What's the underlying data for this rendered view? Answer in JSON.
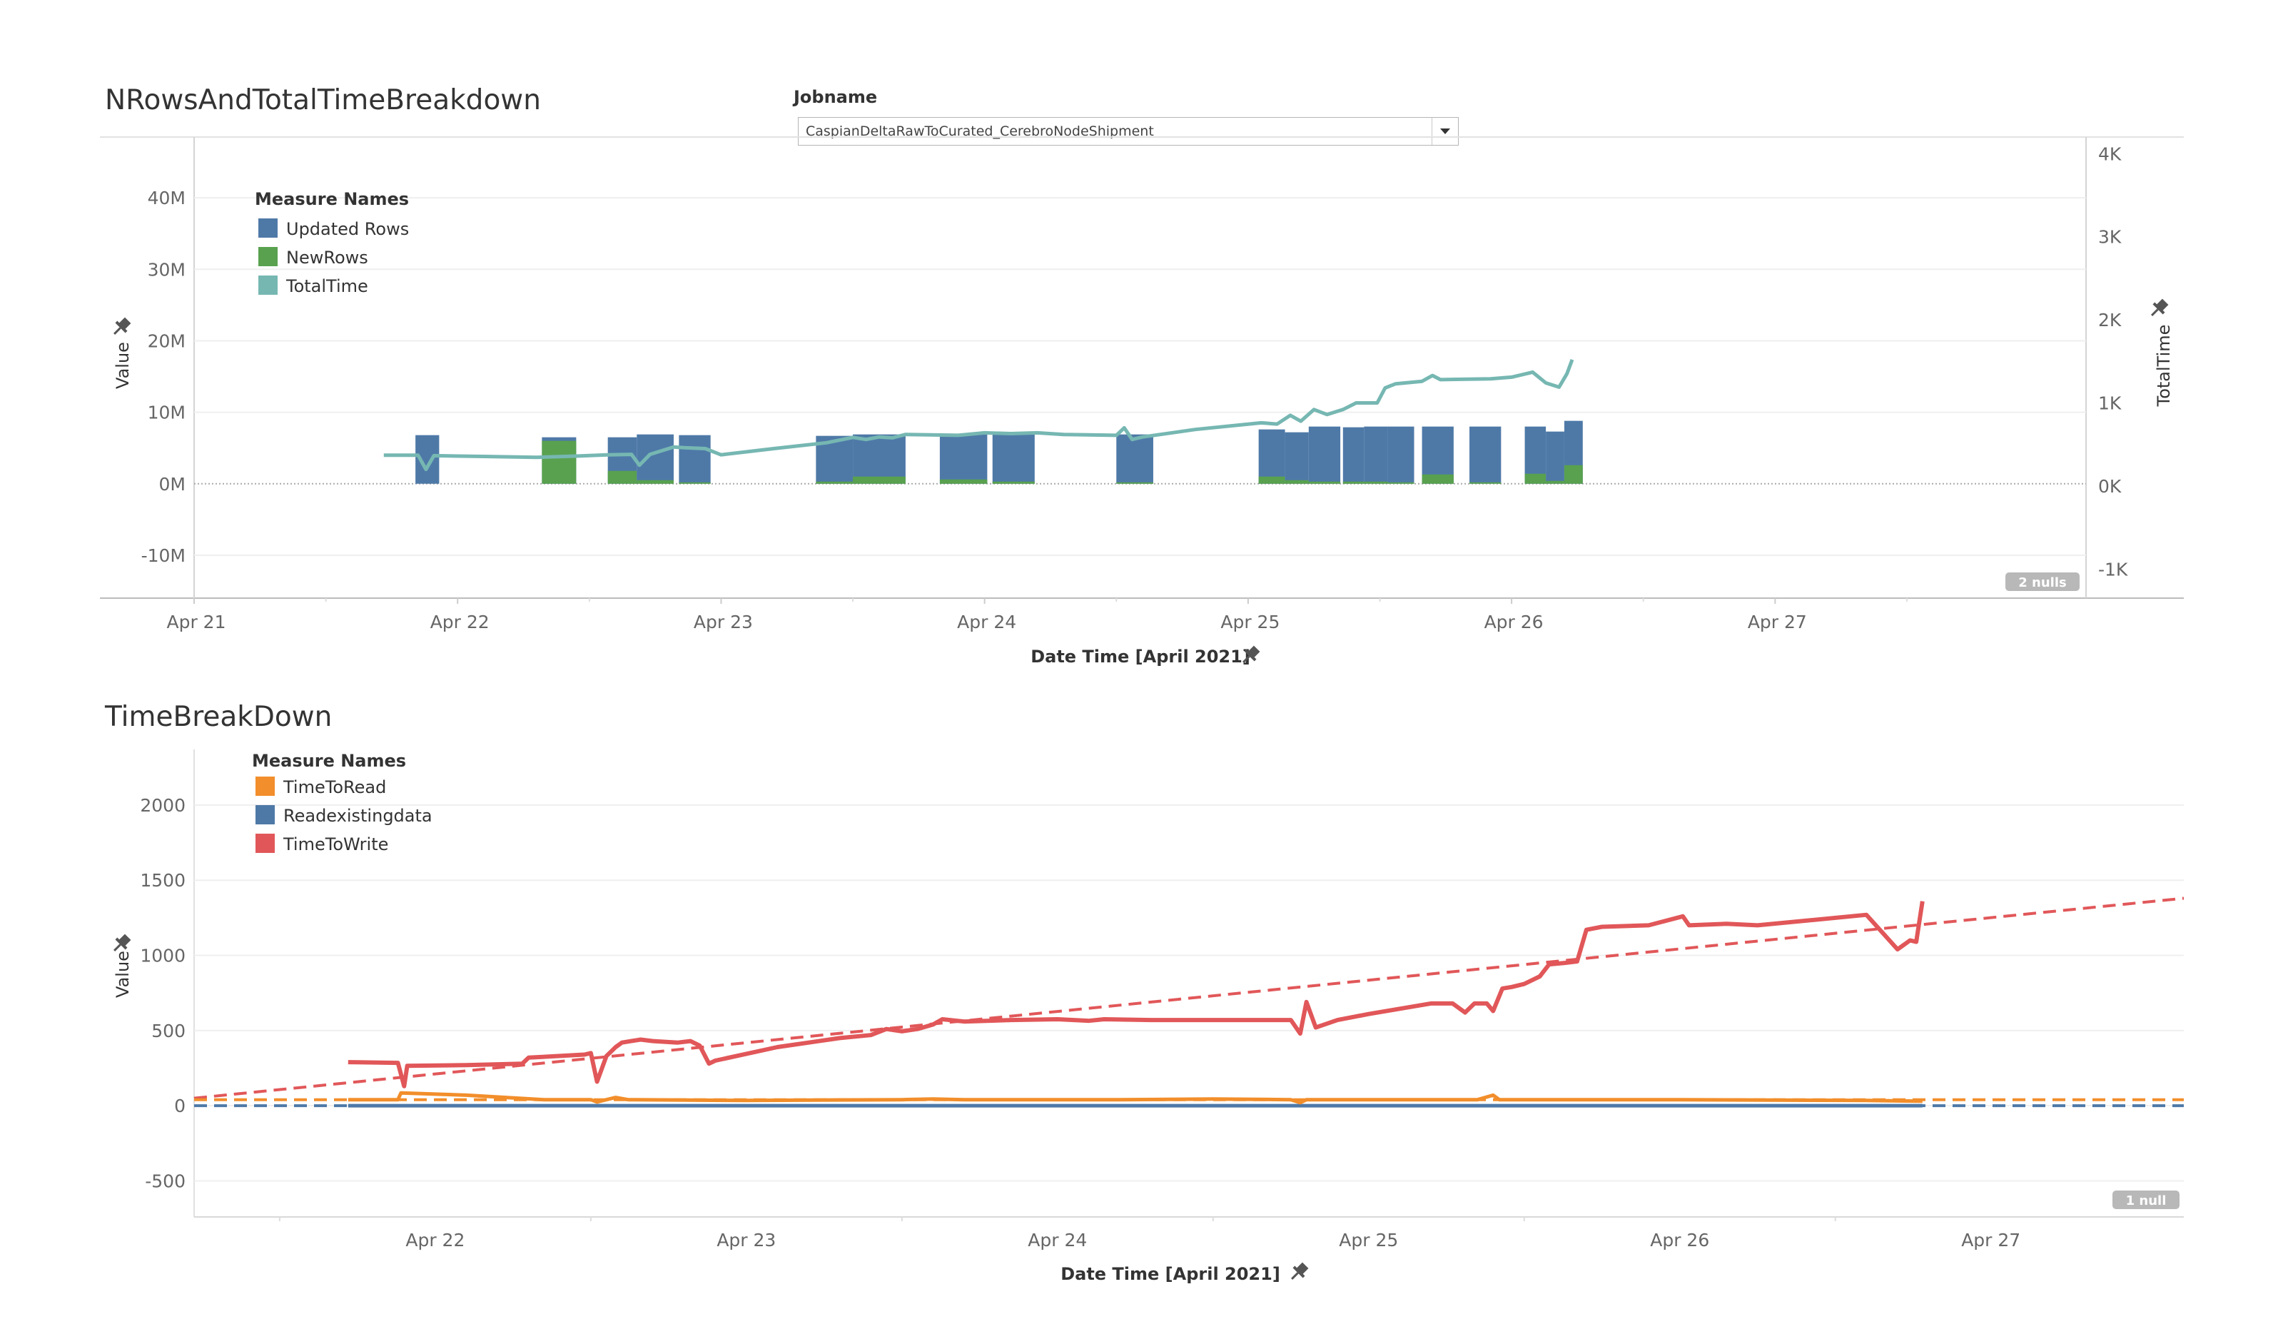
{
  "filter": {
    "label": "Jobname",
    "value": "CaspianDeltaRawToCurated_CerebroNodeShipment"
  },
  "icons": {
    "pin": "pin-icon",
    "dropdown": "chevron-down-icon"
  },
  "chart_data": [
    {
      "type": "bar",
      "title": "NRowsAndTotalTimeBreakdown",
      "xlabel": "Date Time [April 2021]",
      "ylabel": "Value",
      "y2label": "TotalTime",
      "x_ticks": [
        "Apr 21",
        "Apr 22",
        "Apr 23",
        "Apr 24",
        "Apr 25",
        "Apr 26",
        "Apr 27"
      ],
      "y_ticks": [
        "40M",
        "30M",
        "20M",
        "10M",
        "0M",
        "-10M"
      ],
      "y2_ticks": [
        "4K",
        "3K",
        "2K",
        "1K",
        "0K",
        "-1K"
      ],
      "ylim": [
        -16,
        48.5
      ],
      "y2lim": [
        -1350,
        4200
      ],
      "xlim": [
        0,
        7.18
      ],
      "legend_title": "Measure Names",
      "legend": [
        {
          "name": "Updated Rows",
          "color": "#4e79a7"
        },
        {
          "name": "NewRows",
          "color": "#59a14f"
        },
        {
          "name": "TotalTime",
          "color": "#76b7b2"
        }
      ],
      "nulls_badge": "2 nulls",
      "bars": [
        {
          "x": 0.84,
          "w": 0.09,
          "updated": 6.8,
          "new": 0
        },
        {
          "x": 1.32,
          "w": 0.13,
          "updated": 6.5,
          "new": 6.0
        },
        {
          "x": 1.57,
          "w": 0.11,
          "updated": 6.5,
          "new": 1.8
        },
        {
          "x": 1.68,
          "w": 0.14,
          "updated": 6.9,
          "new": 0.5
        },
        {
          "x": 1.84,
          "w": 0.12,
          "updated": 6.8,
          "new": 0.2
        },
        {
          "x": 2.36,
          "w": 0.14,
          "updated": 6.7,
          "new": 0.3
        },
        {
          "x": 2.5,
          "w": 0.2,
          "updated": 6.9,
          "new": 1.0
        },
        {
          "x": 2.83,
          "w": 0.18,
          "updated": 6.9,
          "new": 0.6
        },
        {
          "x": 3.03,
          "w": 0.16,
          "updated": 6.9,
          "new": 0.3
        },
        {
          "x": 3.5,
          "w": 0.14,
          "updated": 6.9,
          "new": 0.2
        },
        {
          "x": 4.04,
          "w": 0.1,
          "updated": 7.6,
          "new": 1.0
        },
        {
          "x": 4.14,
          "w": 0.09,
          "updated": 7.2,
          "new": 0.5
        },
        {
          "x": 4.23,
          "w": 0.12,
          "updated": 8.0,
          "new": 0.3
        },
        {
          "x": 4.36,
          "w": 0.08,
          "updated": 7.9,
          "new": 0.3
        },
        {
          "x": 4.44,
          "w": 0.09,
          "updated": 8.0,
          "new": 0.3
        },
        {
          "x": 4.53,
          "w": 0.1,
          "updated": 8.0,
          "new": 0.2
        },
        {
          "x": 4.66,
          "w": 0.12,
          "updated": 8.0,
          "new": 1.3
        },
        {
          "x": 4.84,
          "w": 0.12,
          "updated": 8.0,
          "new": 0.2
        },
        {
          "x": 5.05,
          "w": 0.08,
          "updated": 8.0,
          "new": 1.4
        },
        {
          "x": 5.13,
          "w": 0.07,
          "updated": 7.3,
          "new": 0.4
        },
        {
          "x": 5.2,
          "w": 0.07,
          "updated": 8.8,
          "new": 2.6
        }
      ],
      "series": [
        {
          "name": "TotalTime",
          "color": "#76b7b2",
          "axis": "right",
          "points": [
            [
              0.72,
              370
            ],
            [
              0.85,
              370
            ],
            [
              0.88,
              200
            ],
            [
              0.91,
              365
            ],
            [
              1.1,
              355
            ],
            [
              1.3,
              345
            ],
            [
              1.45,
              360
            ],
            [
              1.57,
              375
            ],
            [
              1.66,
              380
            ],
            [
              1.69,
              250
            ],
            [
              1.73,
              380
            ],
            [
              1.82,
              470
            ],
            [
              1.86,
              460
            ],
            [
              1.94,
              450
            ],
            [
              2.0,
              375
            ],
            [
              2.2,
              450
            ],
            [
              2.4,
              520
            ],
            [
              2.5,
              585
            ],
            [
              2.55,
              560
            ],
            [
              2.6,
              590
            ],
            [
              2.65,
              580
            ],
            [
              2.7,
              620
            ],
            [
              2.9,
              610
            ],
            [
              3.0,
              640
            ],
            [
              3.1,
              630
            ],
            [
              3.2,
              640
            ],
            [
              3.3,
              620
            ],
            [
              3.5,
              610
            ],
            [
              3.53,
              700
            ],
            [
              3.56,
              560
            ],
            [
              3.6,
              590
            ],
            [
              3.8,
              680
            ],
            [
              4.05,
              760
            ],
            [
              4.11,
              745
            ],
            [
              4.16,
              850
            ],
            [
              4.2,
              780
            ],
            [
              4.25,
              920
            ],
            [
              4.3,
              860
            ],
            [
              4.36,
              920
            ],
            [
              4.41,
              1000
            ],
            [
              4.49,
              1000
            ],
            [
              4.52,
              1180
            ],
            [
              4.56,
              1230
            ],
            [
              4.66,
              1260
            ],
            [
              4.7,
              1330
            ],
            [
              4.73,
              1280
            ],
            [
              4.92,
              1290
            ],
            [
              5.0,
              1310
            ],
            [
              5.08,
              1370
            ],
            [
              5.13,
              1240
            ],
            [
              5.18,
              1190
            ],
            [
              5.21,
              1350
            ],
            [
              5.23,
              1520
            ]
          ]
        }
      ]
    },
    {
      "type": "line",
      "title": "TimeBreakDown",
      "xlabel": "Date Time [April 2021]",
      "ylabel": "Value",
      "x_ticks": [
        "Apr 22",
        "Apr 23",
        "Apr 24",
        "Apr 25",
        "Apr 26",
        "Apr 27"
      ],
      "y_ticks": [
        "2000",
        "1500",
        "1000",
        "500",
        "0",
        "-500"
      ],
      "ylim": [
        -740,
        2370
      ],
      "xlim": [
        0.225,
        6.62
      ],
      "legend_title": "Measure Names",
      "legend": [
        {
          "name": "TimeToRead",
          "color": "#f28e2b"
        },
        {
          "name": "Readexistingdata",
          "color": "#4e79a7"
        },
        {
          "name": "TimeToWrite",
          "color": "#e15759"
        }
      ],
      "nulls_badge": "1 null",
      "series": [
        {
          "name": "TimeToWrite",
          "color": "#e15759",
          "points": [
            [
              0.72,
              290
            ],
            [
              0.88,
              285
            ],
            [
              0.9,
              130
            ],
            [
              0.91,
              265
            ],
            [
              1.1,
              270
            ],
            [
              1.28,
              280
            ],
            [
              1.3,
              320
            ],
            [
              1.48,
              340
            ],
            [
              1.5,
              350
            ],
            [
              1.52,
              160
            ],
            [
              1.55,
              330
            ],
            [
              1.58,
              390
            ],
            [
              1.6,
              420
            ],
            [
              1.63,
              430
            ],
            [
              1.66,
              440
            ],
            [
              1.7,
              430
            ],
            [
              1.78,
              420
            ],
            [
              1.82,
              430
            ],
            [
              1.85,
              400
            ],
            [
              1.88,
              280
            ],
            [
              1.9,
              300
            ],
            [
              2.1,
              390
            ],
            [
              2.3,
              450
            ],
            [
              2.4,
              470
            ],
            [
              2.45,
              510
            ],
            [
              2.5,
              495
            ],
            [
              2.55,
              510
            ],
            [
              2.6,
              540
            ],
            [
              2.63,
              575
            ],
            [
              2.7,
              560
            ],
            [
              2.85,
              570
            ],
            [
              3.0,
              575
            ],
            [
              3.1,
              565
            ],
            [
              3.15,
              575
            ],
            [
              3.3,
              570
            ],
            [
              3.5,
              570
            ],
            [
              3.75,
              570
            ],
            [
              3.78,
              480
            ],
            [
              3.8,
              690
            ],
            [
              3.83,
              520
            ],
            [
              3.9,
              570
            ],
            [
              4.0,
              610
            ],
            [
              4.2,
              680
            ],
            [
              4.27,
              680
            ],
            [
              4.31,
              620
            ],
            [
              4.34,
              680
            ],
            [
              4.38,
              680
            ],
            [
              4.4,
              630
            ],
            [
              4.43,
              780
            ],
            [
              4.46,
              790
            ],
            [
              4.5,
              810
            ],
            [
              4.55,
              860
            ],
            [
              4.58,
              940
            ],
            [
              4.63,
              950
            ],
            [
              4.67,
              960
            ],
            [
              4.7,
              1170
            ],
            [
              4.75,
              1190
            ],
            [
              4.9,
              1200
            ],
            [
              5.01,
              1260
            ],
            [
              5.03,
              1200
            ],
            [
              5.15,
              1210
            ],
            [
              5.25,
              1200
            ],
            [
              5.6,
              1270
            ],
            [
              5.7,
              1040
            ],
            [
              5.74,
              1100
            ],
            [
              5.76,
              1090
            ],
            [
              5.78,
              1360
            ]
          ]
        },
        {
          "name": "TimeToRead",
          "color": "#f28e2b",
          "points": [
            [
              0.72,
              40
            ],
            [
              0.88,
              40
            ],
            [
              0.89,
              85
            ],
            [
              1.1,
              70
            ],
            [
              1.35,
              40
            ],
            [
              1.5,
              40
            ],
            [
              1.52,
              25
            ],
            [
              1.55,
              40
            ],
            [
              1.58,
              55
            ],
            [
              1.62,
              40
            ],
            [
              2.0,
              35
            ],
            [
              2.5,
              40
            ],
            [
              2.6,
              45
            ],
            [
              2.7,
              40
            ],
            [
              3.0,
              40
            ],
            [
              3.2,
              40
            ],
            [
              3.5,
              45
            ],
            [
              3.75,
              40
            ],
            [
              3.78,
              20
            ],
            [
              3.8,
              40
            ],
            [
              4.0,
              40
            ],
            [
              4.2,
              40
            ],
            [
              4.35,
              40
            ],
            [
              4.4,
              70
            ],
            [
              4.42,
              40
            ],
            [
              4.6,
              40
            ],
            [
              5.0,
              40
            ],
            [
              5.6,
              35
            ],
            [
              5.78,
              30
            ]
          ]
        },
        {
          "name": "Readexistingdata",
          "color": "#4e79a7",
          "points": [
            [
              0.72,
              0
            ],
            [
              5.78,
              0
            ]
          ]
        }
      ],
      "trendlines": [
        {
          "name": "TimeToWrite",
          "color": "#e15759",
          "points": [
            [
              0.225,
              50
            ],
            [
              6.62,
              1380
            ]
          ]
        },
        {
          "name": "TimeToRead",
          "color": "#f28e2b",
          "points": [
            [
              0.225,
              40
            ],
            [
              6.62,
              40
            ]
          ]
        },
        {
          "name": "Readexistingdata",
          "color": "#4e79a7",
          "points": [
            [
              0.225,
              0
            ],
            [
              6.62,
              0
            ]
          ]
        }
      ]
    }
  ]
}
